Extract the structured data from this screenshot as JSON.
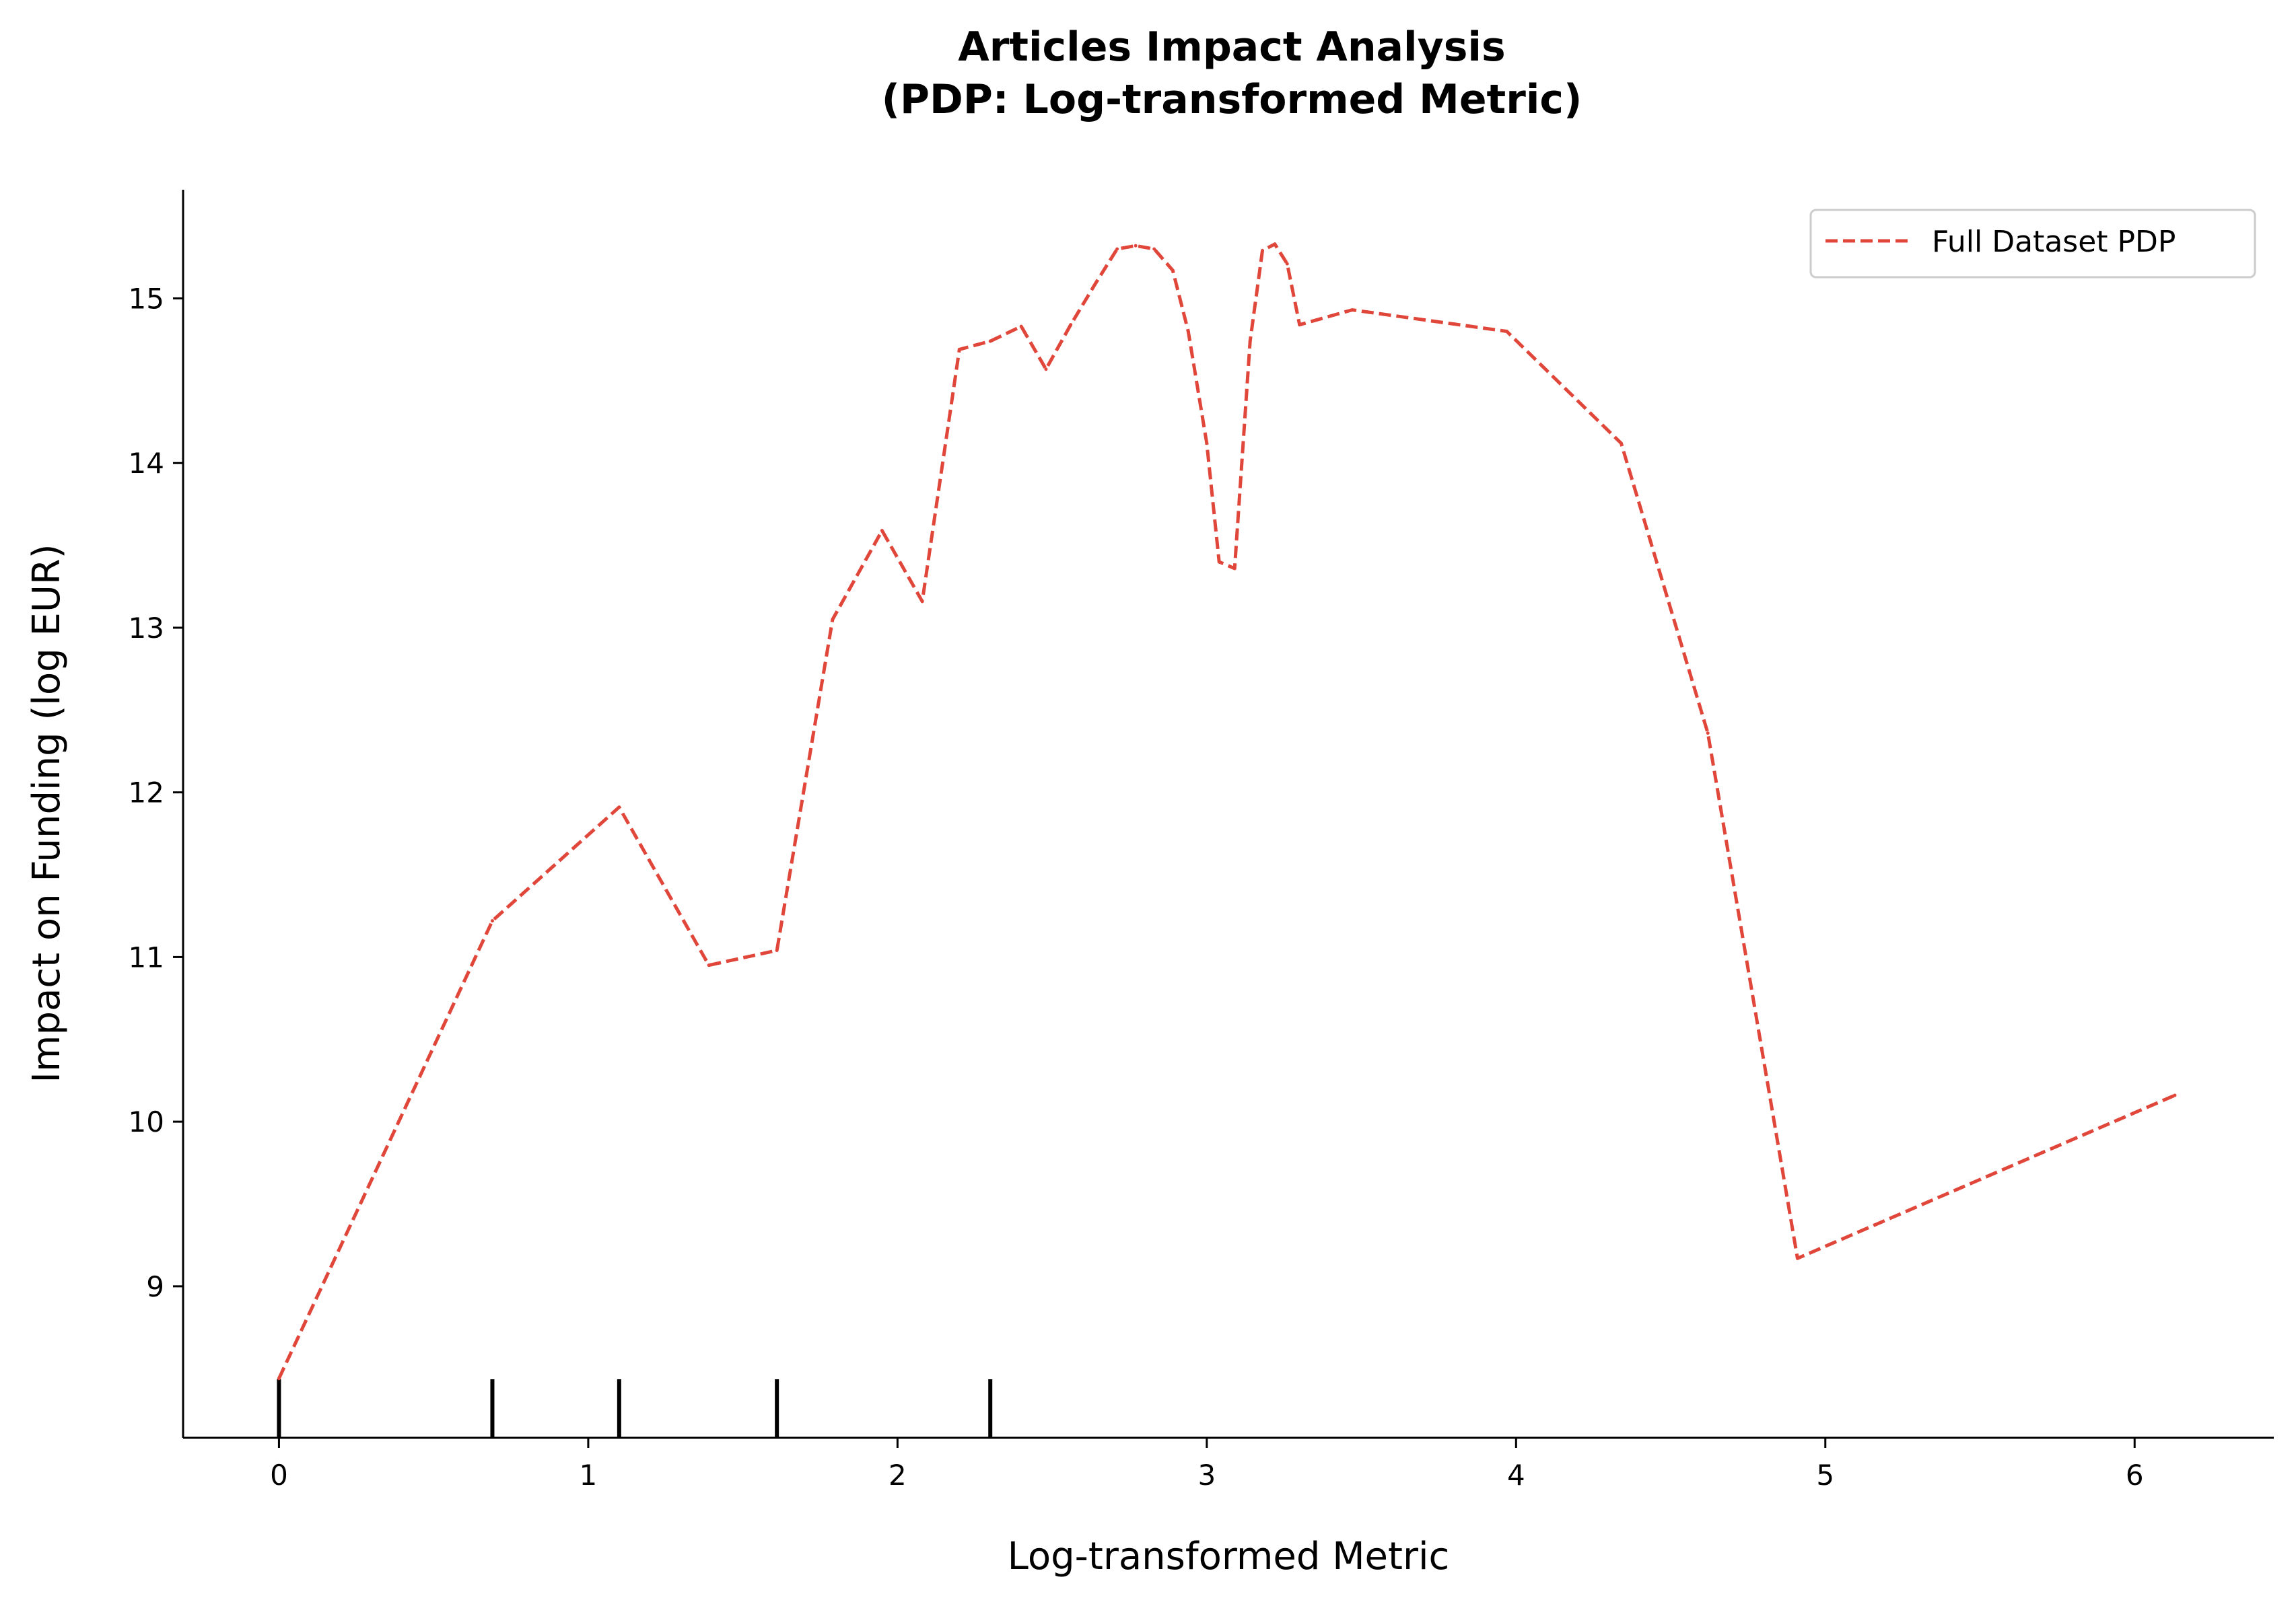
{
  "chart_data": {
    "type": "line",
    "title_line1": "Articles Impact Analysis",
    "title_line2": "(PDP: Log-transformed Metric)",
    "xlabel": "Log-transformed Metric",
    "ylabel": "Impact on Funding (log EUR)",
    "xlim": [
      -0.31,
      6.45
    ],
    "ylim": [
      8.08,
      15.66
    ],
    "xticks": [
      0,
      1,
      2,
      3,
      4,
      5,
      6
    ],
    "yticks": [
      9,
      10,
      11,
      12,
      13,
      14,
      15
    ],
    "grid": false,
    "legend_position": "top-right",
    "line_color": "#e0463a",
    "series": [
      {
        "name": "Full Dataset PDP",
        "style": "dashed",
        "x": [
          0,
          0.69,
          1.1,
          1.39,
          1.61,
          1.79,
          1.95,
          2.08,
          2.2,
          2.3,
          2.4,
          2.48,
          2.56,
          2.64,
          2.71,
          2.77,
          2.83,
          2.89,
          2.94,
          3.0,
          3.04,
          3.09,
          3.14,
          3.18,
          3.22,
          3.26,
          3.3,
          3.47,
          3.97,
          4.34,
          4.62,
          4.91,
          6.13
        ],
        "y": [
          8.44,
          11.22,
          11.91,
          10.95,
          11.04,
          13.05,
          13.59,
          13.16,
          14.69,
          14.74,
          14.83,
          14.57,
          14.84,
          15.09,
          15.3,
          15.32,
          15.3,
          15.17,
          14.8,
          14.12,
          13.4,
          13.36,
          14.74,
          15.29,
          15.33,
          15.21,
          14.84,
          14.93,
          14.8,
          14.12,
          12.36,
          9.17,
          10.16
        ]
      }
    ],
    "rug_x": [
      0,
      0.69,
      1.1,
      1.61,
      2.3
    ]
  }
}
